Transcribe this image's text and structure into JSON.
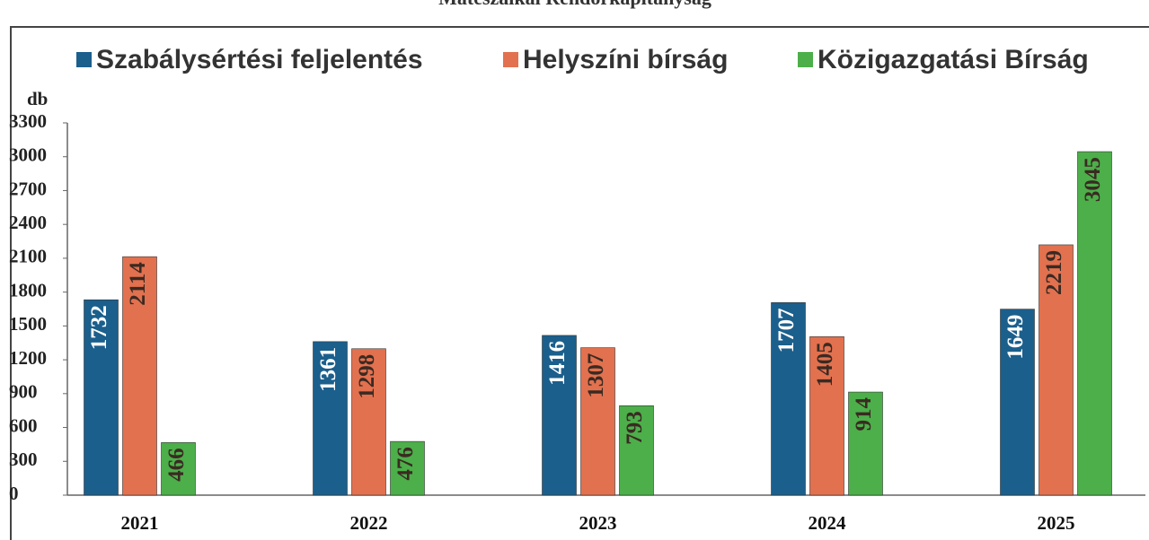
{
  "chart_data": {
    "type": "bar",
    "title": "Mátészalkai Rendőrkapitányság",
    "y_label": "db",
    "categories": [
      "2021",
      "2022",
      "2023",
      "2024",
      "2025"
    ],
    "series": [
      {
        "name": "Szabálysértési feljelentés",
        "color": "#1b5f8c",
        "values": [
          1732,
          1361,
          1416,
          1707,
          1649
        ]
      },
      {
        "name": "Helyszíni bírság",
        "color": "#e2714f",
        "values": [
          2114,
          1298,
          1307,
          1405,
          2219
        ]
      },
      {
        "name": "Közigazgatási Bírság",
        "color": "#4caf4a",
        "values": [
          466,
          476,
          793,
          914,
          3045
        ]
      }
    ],
    "ylim": [
      0,
      3300
    ],
    "yticks": [
      0,
      300,
      600,
      900,
      1200,
      1500,
      1800,
      2100,
      2400,
      2700,
      3000,
      3300
    ],
    "grid": false,
    "legend": "top"
  }
}
